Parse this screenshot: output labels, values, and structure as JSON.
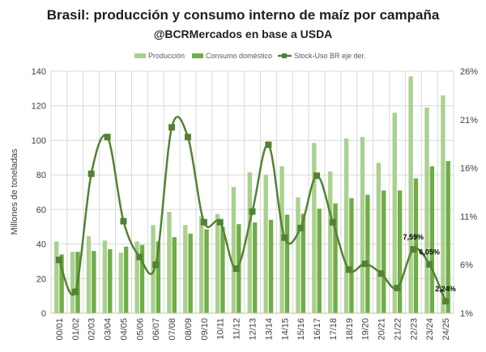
{
  "chart_data": {
    "type": "bar",
    "title": "Brasil: producción y consumo interno de maíz por campaña",
    "subtitle": "@BCRMercados en base a USDA",
    "ylabel": "Millones de toneladas",
    "ylim": [
      0,
      140
    ],
    "yticks": [
      "0",
      "20",
      "40",
      "60",
      "80",
      "100",
      "120",
      "140"
    ],
    "y2lim": [
      1,
      26
    ],
    "y2ticks": [
      "1%",
      "6%",
      "11%",
      "16%",
      "21%",
      "26%"
    ],
    "legend_position": "top",
    "grid": true,
    "categories": [
      "00/01",
      "01/02",
      "02/03",
      "03/04",
      "04/05",
      "05/06",
      "06/07",
      "07/08",
      "08/09",
      "09/10",
      "10/11",
      "11/12",
      "12/13",
      "13/14",
      "14/15",
      "15/16",
      "16/17",
      "17/18",
      "18/19",
      "19/20",
      "20/21",
      "21/22",
      "22/23",
      "23/24",
      "24/25"
    ],
    "series": [
      {
        "name": "Producción",
        "kind": "bar",
        "color": "#a9d18e",
        "values": [
          41.5,
          35.5,
          44.5,
          42,
          35,
          41.5,
          51,
          58.6,
          51,
          56.1,
          57.4,
          73,
          81.5,
          80,
          85,
          67,
          98.5,
          82,
          101,
          102,
          87,
          116,
          137,
          119,
          126
        ]
      },
      {
        "name": "Consumo doméstico",
        "kind": "bar",
        "color": "#70ad47",
        "values": [
          34,
          35.5,
          36,
          37,
          38.5,
          39.5,
          41.5,
          44,
          46,
          48.5,
          50,
          51.5,
          52.5,
          54,
          57,
          57.5,
          60.5,
          63.5,
          66.5,
          68.5,
          71,
          71,
          78,
          85,
          88
        ]
      },
      {
        "name": "Stock-Uso BR eje der.",
        "kind": "line",
        "axis": "right",
        "color": "#548235",
        "values": [
          6.5,
          3.2,
          15.4,
          19.2,
          10.5,
          6.8,
          6.0,
          20.2,
          19.2,
          10.4,
          10.4,
          5.6,
          11.5,
          18.4,
          8.8,
          9.8,
          15.2,
          10.4,
          5.5,
          6.1,
          5.1,
          3.6,
          7.59,
          6.05,
          2.24
        ]
      }
    ],
    "data_labels": [
      {
        "category": "22/23",
        "text": "7,59%"
      },
      {
        "category": "23/24",
        "text": "6,05%"
      },
      {
        "category": "24/25",
        "text": "2,24%"
      }
    ]
  }
}
